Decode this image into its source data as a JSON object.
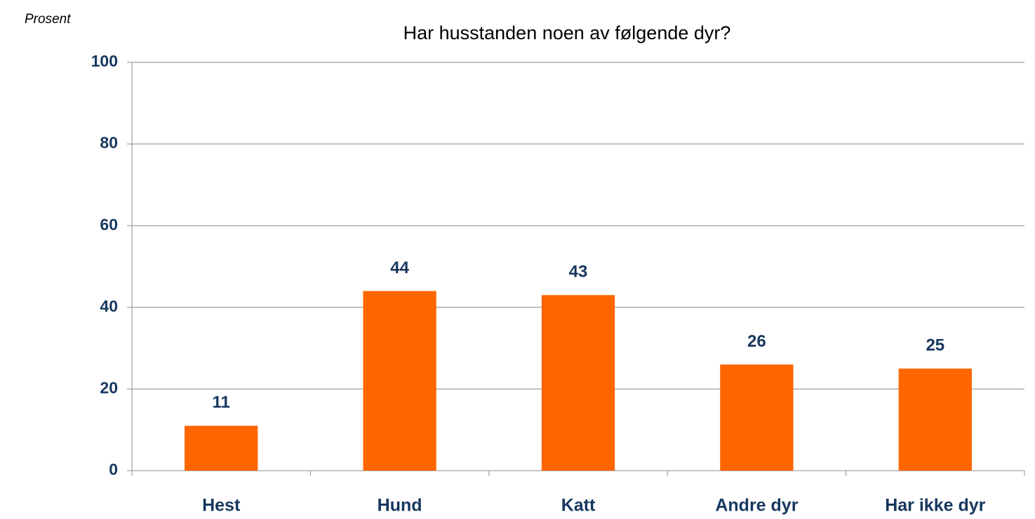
{
  "chart_data": {
    "type": "bar",
    "title": "Har husstanden noen av følgende dyr?",
    "y_label": "Prosent",
    "categories": [
      "Hest",
      "Hund",
      "Katt",
      "Andre dyr",
      "Har ikke dyr"
    ],
    "values": [
      11,
      44,
      43,
      26,
      25
    ],
    "color": "#ff6600",
    "ylim": [
      0,
      100
    ],
    "yticks": [
      0,
      20,
      40,
      60,
      80,
      100
    ],
    "grid": true
  }
}
